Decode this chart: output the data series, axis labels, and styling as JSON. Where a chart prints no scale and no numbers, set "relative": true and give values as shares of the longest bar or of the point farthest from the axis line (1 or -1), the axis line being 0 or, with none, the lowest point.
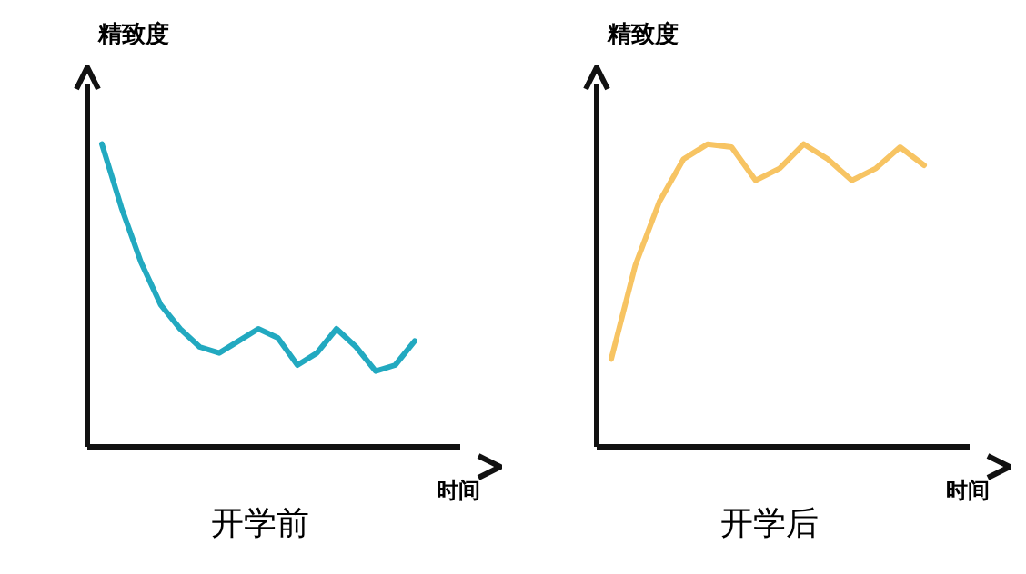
{
  "chart_data": [
    {
      "type": "line",
      "relative": true,
      "title": "开学前",
      "xlabel": "时间",
      "ylabel": "精致度",
      "categories": [
        null,
        null,
        null,
        null,
        null,
        null,
        null,
        null,
        null,
        null,
        null,
        null,
        null,
        null,
        null,
        null,
        null
      ],
      "series": [
        {
          "color": "#22a9c0",
          "values": [
            1,
            0.79,
            0.61,
            0.47,
            0.39,
            0.33,
            0.31,
            0.35,
            0.39,
            0.36,
            0.27,
            0.31,
            0.39,
            0.33,
            0.25,
            0.27,
            0.35
          ]
        }
      ],
      "grid": false,
      "legend": false,
      "marker": "none",
      "line_style": "solid"
    },
    {
      "type": "line",
      "relative": true,
      "title": "开学后",
      "xlabel": "时间",
      "ylabel": "精致度",
      "categories": [
        null,
        null,
        null,
        null,
        null,
        null,
        null,
        null,
        null,
        null,
        null,
        null,
        null,
        null
      ],
      "series": [
        {
          "color": "#f7c463",
          "values": [
            0.29,
            0.6,
            0.81,
            0.95,
            1,
            0.99,
            0.88,
            0.92,
            1,
            0.95,
            0.88,
            0.92,
            0.99,
            0.93
          ]
        }
      ],
      "grid": false,
      "legend": false,
      "marker": "none",
      "line_style": "solid"
    }
  ]
}
